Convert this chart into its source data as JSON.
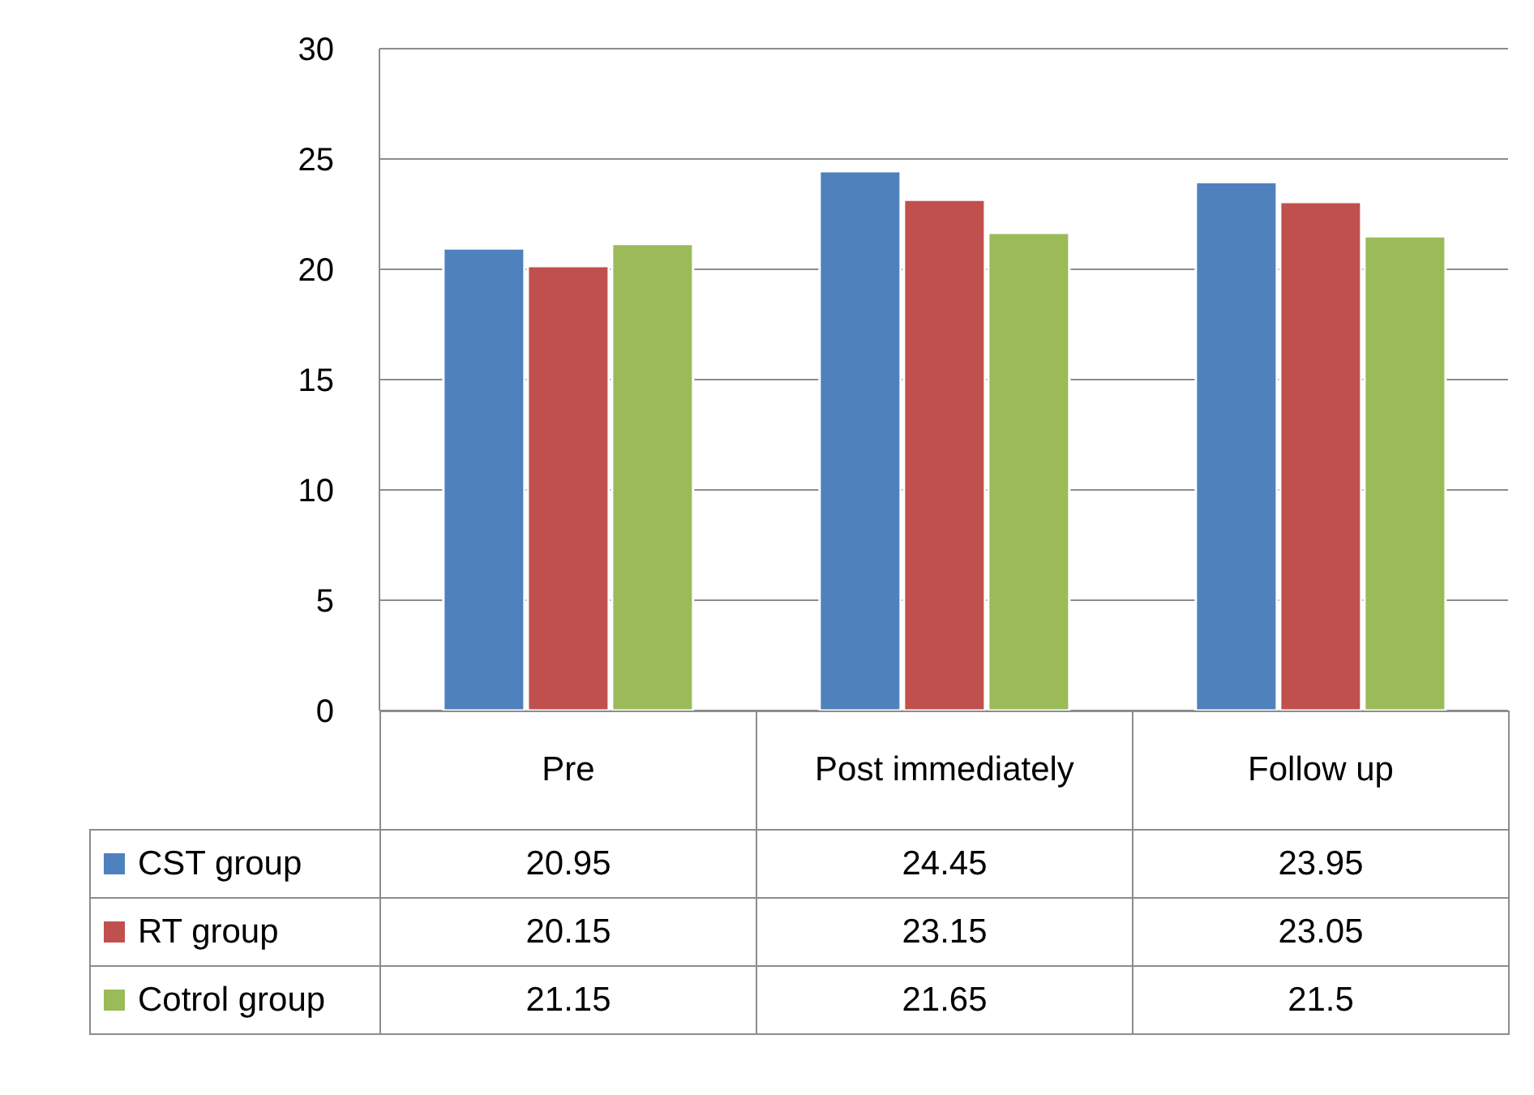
{
  "chart_data": {
    "type": "bar",
    "categories": [
      "Pre",
      "Post immediately",
      "Follow up"
    ],
    "series": [
      {
        "name": "CST group",
        "color": "#4f81bd",
        "values": [
          20.95,
          24.45,
          23.95
        ]
      },
      {
        "name": "RT group",
        "color": "#c0504d",
        "values": [
          20.15,
          23.15,
          23.05
        ]
      },
      {
        "name": "Cotrol group",
        "color": "#9bbb59",
        "values": [
          21.15,
          21.65,
          21.5
        ]
      }
    ],
    "ylim": [
      0,
      30
    ],
    "yticks": [
      0,
      5,
      10,
      15,
      20,
      25,
      30
    ],
    "grid": "y",
    "legend": "bottom",
    "data_labels": true
  }
}
